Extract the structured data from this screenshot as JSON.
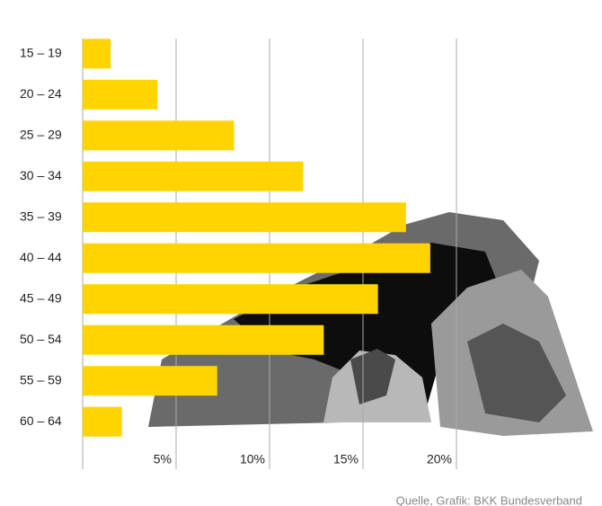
{
  "chart_data": {
    "type": "bar",
    "orientation": "horizontal",
    "categories": [
      "15 – 19",
      "20 – 24",
      "25 – 29",
      "30 – 34",
      "35 – 39",
      "40 – 44",
      "45 – 49",
      "50 – 54",
      "55 – 59",
      "60 – 64"
    ],
    "values": [
      1.5,
      4.0,
      8.1,
      11.8,
      17.3,
      18.6,
      15.8,
      12.9,
      7.2,
      2.1
    ],
    "color": "#ffd400",
    "xlim": [
      0,
      27.5
    ],
    "xticks": [
      {
        "value": 5,
        "label": "5%"
      },
      {
        "value": 10,
        "label": "10%"
      },
      {
        "value": 15,
        "label": "15%"
      },
      {
        "value": 20,
        "label": "20%"
      }
    ],
    "grid": true,
    "source": "Quelle, Grafik: BKK Bundesverband"
  }
}
